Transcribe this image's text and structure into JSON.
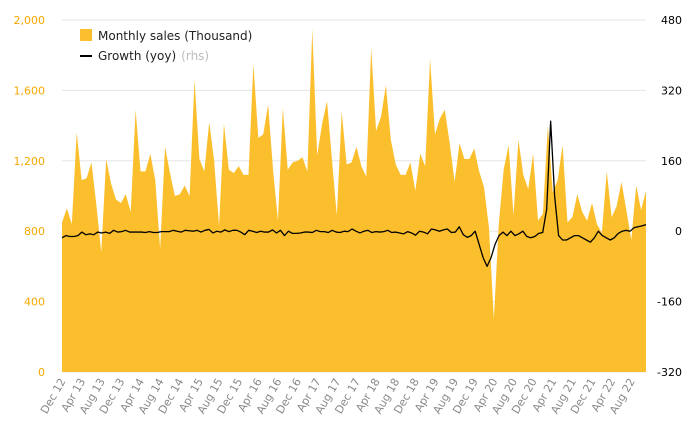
{
  "chart_data": {
    "type": "area",
    "title": "",
    "xlabel": "",
    "ylabel": "",
    "ylim": [
      0,
      2000
    ],
    "y2lim": [
      -320,
      480
    ],
    "yticks": [
      "0",
      "400",
      "800",
      "1,200",
      "1,600",
      "2,000"
    ],
    "y2ticks": [
      "-320",
      "-160",
      "0",
      "160",
      "320",
      "480"
    ],
    "x_tick_labels": [
      "Dec 12",
      "Apr 13",
      "Aug 13",
      "Dec 13",
      "Apr 14",
      "Aug 14",
      "Dec 14",
      "Apr 15",
      "Aug 15",
      "Dec 15",
      "Apr 16",
      "Aug 16",
      "Dec 16",
      "Apr 17",
      "Aug 17",
      "Dec 17",
      "Apr 18",
      "Aug 18",
      "Dec 18",
      "Apr 19",
      "Aug 19",
      "Dec 19",
      "Apr 20",
      "Aug 20",
      "Dec 20",
      "Apr 21",
      "Aug 21",
      "Dec 21",
      "Apr 22",
      "Aug 22"
    ],
    "grid": true,
    "legend_position": "top-left",
    "legend": {
      "sales_label": "Monthly sales (Thousand)",
      "growth_label": "Growth (yoy)",
      "growth_suffix": "(rhs)"
    },
    "colors": {
      "sales": "#fbbf2d",
      "growth": "#000000",
      "left_axis": "#f5a800"
    },
    "series": [
      {
        "name": "Monthly sales (Thousand)",
        "axis": "left",
        "values": [
          850,
          930,
          840,
          1360,
          1090,
          1100,
          1190,
          950,
          680,
          1210,
          1070,
          980,
          960,
          1010,
          910,
          1490,
          1140,
          1140,
          1240,
          1090,
          700,
          1280,
          1130,
          1000,
          1010,
          1060,
          1000,
          1660,
          1210,
          1140,
          1420,
          1200,
          830,
          1410,
          1150,
          1130,
          1170,
          1120,
          1120,
          1750,
          1330,
          1350,
          1520,
          1150,
          860,
          1500,
          1150,
          1190,
          1200,
          1220,
          1140,
          1950,
          1230,
          1410,
          1540,
          1210,
          890,
          1480,
          1180,
          1190,
          1280,
          1170,
          1110,
          1840,
          1370,
          1450,
          1630,
          1320,
          1180,
          1120,
          1120,
          1190,
          1030,
          1240,
          1170,
          1780,
          1350,
          1440,
          1490,
          1300,
          1080,
          1300,
          1210,
          1210,
          1270,
          1140,
          1050,
          820,
          300,
          840,
          1150,
          1290,
          890,
          1320,
          1120,
          1040,
          1240,
          860,
          900,
          1400,
          1020,
          1090,
          1290,
          850,
          880,
          1010,
          910,
          860,
          960,
          840,
          790,
          1140,
          880,
          940,
          1080,
          920,
          750,
          1060,
          920,
          1030
        ]
      },
      {
        "name": "Growth (yoy)",
        "axis": "right",
        "values": [
          -15,
          -10,
          -12,
          -12,
          -10,
          -2,
          -8,
          -6,
          -8,
          -2,
          -4,
          -2,
          -5,
          2,
          -2,
          -1,
          2,
          -2,
          -2,
          -2,
          -2,
          -3,
          -1,
          -3,
          -3,
          -1,
          -1,
          -1,
          2,
          0,
          -2,
          2,
          1,
          0,
          2,
          -2,
          2,
          4,
          -4,
          0,
          -2,
          3,
          -1,
          2,
          2,
          -2,
          -8,
          2,
          0,
          -3,
          0,
          -2,
          -2,
          3,
          -4,
          2,
          -10,
          0,
          -5,
          -5,
          -4,
          -2,
          -2,
          -3,
          2,
          -1,
          -1,
          -3,
          2,
          -2,
          -3,
          0,
          -1,
          5,
          0,
          -4,
          0,
          2,
          -3,
          -1,
          -2,
          -1,
          2,
          -3,
          -2,
          -4,
          -6,
          -1,
          -4,
          -9,
          0,
          -2,
          -6,
          5,
          3,
          0,
          3,
          5,
          -3,
          -2,
          10,
          -8,
          -14,
          -10,
          0,
          -30,
          -60,
          -80,
          -60,
          -30,
          -10,
          -2,
          -10,
          0,
          -10,
          -6,
          0,
          -12,
          -15,
          -12,
          -5,
          -3,
          50,
          250,
          80,
          -10,
          -20,
          -20,
          -15,
          -10,
          -10,
          -15,
          -20,
          -25,
          -15,
          0,
          -10,
          -15,
          -20,
          -15,
          -5,
          0,
          2,
          0,
          8,
          10,
          12,
          15
        ]
      }
    ]
  }
}
